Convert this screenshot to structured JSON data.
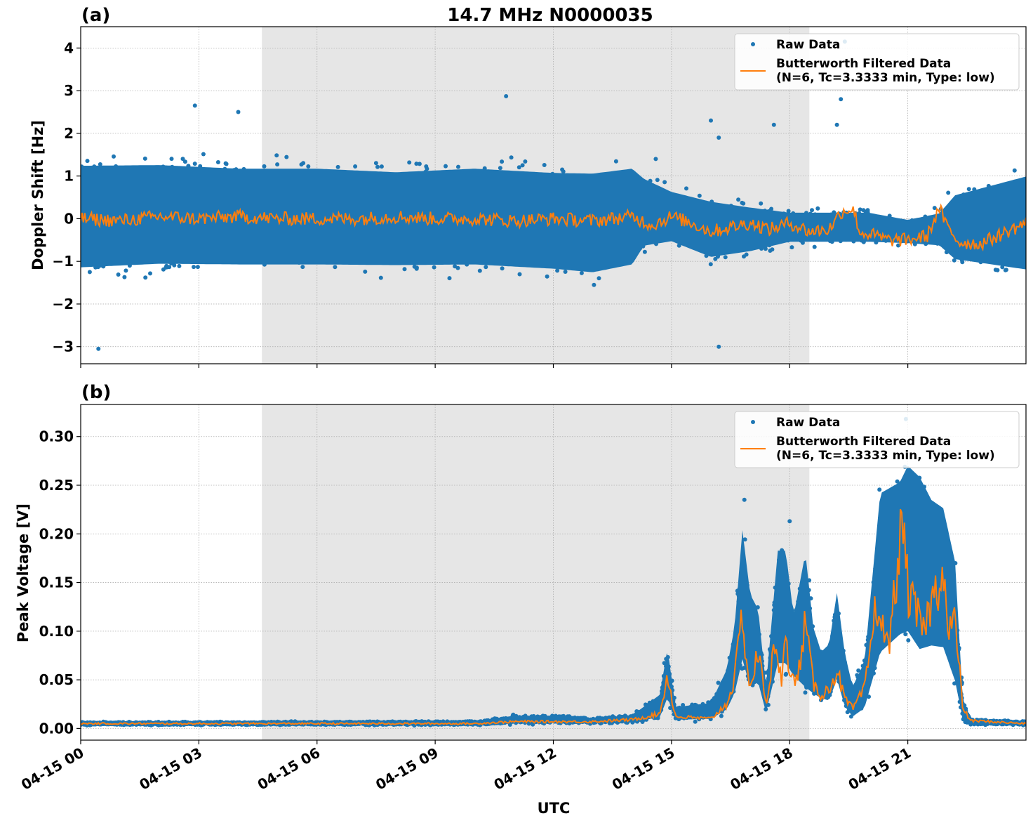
{
  "figure": {
    "title": "14.7 MHz N0000035",
    "xlabel": "UTC",
    "x_ticks": [
      "04-15 00",
      "04-15 03",
      "04-15 06",
      "04-15 09",
      "04-15 12",
      "04-15 15",
      "04-15 18",
      "04-15 21"
    ],
    "colors": {
      "raw": "#1f77b4",
      "filtered": "#ff7f0e",
      "shade": "#e6e6e6",
      "grid": "#b0b0b0"
    }
  },
  "chart_data": [
    {
      "type": "scatter",
      "panel_label": "(a)",
      "ylabel": "Doppler Shift [Hz]",
      "x_unit": "hours UTC on 04-15",
      "xlim": [
        0,
        24
      ],
      "ylim": [
        -3.4,
        4.5
      ],
      "y_ticks": [
        "4",
        "3",
        "2",
        "1",
        "0",
        "−1",
        "−2",
        "−3"
      ],
      "y_tick_values": [
        4,
        3,
        2,
        1,
        0,
        -1,
        -2,
        -3
      ],
      "shaded_span_hours": [
        4.6,
        18.5
      ],
      "grid": true,
      "legend_placement": "top-right",
      "legend": [
        "Raw Data",
        "Butterworth Filtered Data",
        "(N=6, Tc=3.3333 min, Type: low)"
      ],
      "series": [
        {
          "name": "Raw Data",
          "kind": "points",
          "envelope_x": [
            0,
            2,
            4,
            6,
            8,
            10,
            12,
            13,
            14,
            14.3,
            15,
            16,
            17,
            18,
            19,
            20,
            21,
            21.8,
            22.2,
            24
          ],
          "envelope_min": [
            -1.7,
            -1.6,
            -1.6,
            -1.6,
            -1.6,
            -1.6,
            -1.7,
            -1.8,
            -1.6,
            -1.0,
            -0.8,
            -1.2,
            -1.0,
            -0.7,
            -0.7,
            -0.7,
            -0.7,
            -0.8,
            -1.3,
            -1.7
          ],
          "envelope_max": [
            1.8,
            1.8,
            1.7,
            1.7,
            1.6,
            1.7,
            1.6,
            1.6,
            1.7,
            1.3,
            0.9,
            0.7,
            0.5,
            0.3,
            0.3,
            0.3,
            0.1,
            0.3,
            0.9,
            1.5
          ],
          "outliers": [
            [
              0.45,
              -3.05
            ],
            [
              2.9,
              2.65
            ],
            [
              4.0,
              2.5
            ],
            [
              10.8,
              2.87
            ],
            [
              16.2,
              -3.0
            ],
            [
              16.2,
              1.9
            ],
            [
              19.4,
              4.15
            ],
            [
              19.3,
              2.8
            ],
            [
              19.2,
              2.2
            ],
            [
              17.6,
              2.2
            ],
            [
              16.0,
              2.3
            ],
            [
              14.6,
              1.4
            ]
          ]
        },
        {
          "name": "Butterworth Filtered Data",
          "kind": "line",
          "x": [
            0,
            1,
            2,
            3,
            4,
            5,
            6,
            7,
            8,
            9,
            10,
            11,
            12,
            13,
            14,
            14.5,
            15,
            15.5,
            16,
            16.5,
            17,
            17.5,
            18,
            18.5,
            19,
            19.3,
            19.6,
            19.8,
            20,
            20.5,
            21,
            21.5,
            21.8,
            22.0,
            22.3,
            22.8,
            23.3,
            24
          ],
          "y": [
            0.0,
            -0.05,
            0.05,
            0.0,
            0.05,
            0.0,
            0.0,
            0.0,
            0.05,
            0.0,
            0.0,
            -0.05,
            0.0,
            -0.05,
            0.05,
            -0.15,
            0.05,
            -0.1,
            -0.3,
            -0.2,
            -0.1,
            -0.25,
            -0.1,
            -0.3,
            -0.25,
            0.15,
            0.25,
            -0.35,
            -0.35,
            -0.5,
            -0.5,
            -0.4,
            0.25,
            -0.2,
            -0.55,
            -0.6,
            -0.4,
            -0.1
          ]
        }
      ]
    },
    {
      "type": "scatter",
      "panel_label": "(b)",
      "ylabel": "Peak Voltage [V]",
      "x_unit": "hours UTC on 04-15",
      "xlim": [
        0,
        24
      ],
      "ylim": [
        -0.012,
        0.333
      ],
      "y_ticks": [
        "0.30",
        "0.25",
        "0.20",
        "0.15",
        "0.10",
        "0.05",
        "0.00"
      ],
      "y_tick_values": [
        0.3,
        0.25,
        0.2,
        0.15,
        0.1,
        0.05,
        0.0
      ],
      "shaded_span_hours": [
        4.6,
        18.5
      ],
      "grid": true,
      "legend_placement": "top-right",
      "legend": [
        "Raw Data",
        "Butterworth Filtered Data",
        "(N=6, Tc=3.3333 min, Type: low)"
      ],
      "series": [
        {
          "name": "Raw Data",
          "kind": "points",
          "envelope_x": [
            0,
            10,
            11,
            12,
            13,
            14,
            14.7,
            14.9,
            15.1,
            16.0,
            16.4,
            16.6,
            16.8,
            17.0,
            17.2,
            17.4,
            17.7,
            17.9,
            18.1,
            18.4,
            18.6,
            18.8,
            19.0,
            19.2,
            19.4,
            19.6,
            19.9,
            20.3,
            20.8,
            21.0,
            21.3,
            21.6,
            21.9,
            22.2,
            22.4,
            22.6,
            24
          ],
          "envelope_min": [
            0.003,
            0.003,
            0.003,
            0.004,
            0.004,
            0.005,
            0.006,
            0.02,
            0.006,
            0.006,
            0.01,
            0.02,
            0.04,
            0.02,
            0.03,
            0.01,
            0.04,
            0.04,
            0.04,
            0.01,
            0.02,
            0.02,
            0.015,
            0.03,
            0.01,
            0.005,
            0.01,
            0.04,
            0.06,
            0.06,
            0.04,
            0.05,
            0.05,
            0.02,
            0.005,
            0.003,
            0.003
          ],
          "envelope_max": [
            0.007,
            0.008,
            0.015,
            0.015,
            0.012,
            0.015,
            0.04,
            0.094,
            0.025,
            0.03,
            0.07,
            0.12,
            0.235,
            0.16,
            0.14,
            0.05,
            0.21,
            0.21,
            0.13,
            0.213,
            0.12,
            0.09,
            0.1,
            0.16,
            0.09,
            0.05,
            0.08,
            0.28,
            0.29,
            0.31,
            0.3,
            0.27,
            0.26,
            0.2,
            0.03,
            0.01,
            0.008
          ],
          "outliers": [
            [
              16.85,
              0.235
            ],
            [
              18.0,
              0.213
            ],
            [
              20.95,
              0.318
            ],
            [
              21.5,
              0.295
            ]
          ]
        },
        {
          "name": "Butterworth Filtered Data",
          "kind": "line",
          "x": [
            0,
            10,
            11,
            12,
            13,
            14,
            14.7,
            14.9,
            15.1,
            16.0,
            16.4,
            16.6,
            16.8,
            16.9,
            17.0,
            17.2,
            17.4,
            17.6,
            17.8,
            17.9,
            18.0,
            18.2,
            18.4,
            18.6,
            18.8,
            19.0,
            19.2,
            19.4,
            19.6,
            19.9,
            20.2,
            20.5,
            20.8,
            20.9,
            21.0,
            21.2,
            21.4,
            21.6,
            21.8,
            21.9,
            22.0,
            22.2,
            22.4,
            22.6,
            24
          ],
          "y": [
            0.005,
            0.005,
            0.007,
            0.007,
            0.007,
            0.009,
            0.015,
            0.055,
            0.012,
            0.01,
            0.025,
            0.05,
            0.12,
            0.07,
            0.04,
            0.08,
            0.025,
            0.08,
            0.05,
            0.115,
            0.05,
            0.05,
            0.11,
            0.045,
            0.035,
            0.04,
            0.06,
            0.03,
            0.02,
            0.04,
            0.13,
            0.08,
            0.19,
            0.21,
            0.14,
            0.12,
            0.1,
            0.13,
            0.15,
            0.175,
            0.1,
            0.11,
            0.02,
            0.008,
            0.005
          ]
        }
      ]
    }
  ]
}
